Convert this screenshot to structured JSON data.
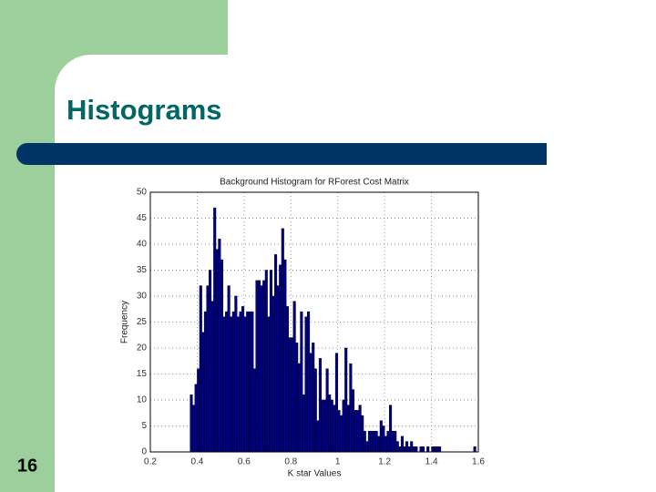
{
  "slide": {
    "title": "Histograms",
    "page_number": "16"
  },
  "chart_data": {
    "type": "histogram",
    "title": "Background Histogram for RForest Cost Matrix",
    "x_label": "K star Values",
    "y_label": "Frequency",
    "color": "#00008f",
    "bins": [
      0.37,
      0.38,
      0.39,
      0.4,
      0.41,
      0.42,
      0.43,
      0.44,
      0.45,
      0.46,
      0.47,
      0.48,
      0.49,
      0.5,
      0.51,
      0.52,
      0.53,
      0.54,
      0.55,
      0.56,
      0.57,
      0.58,
      0.59,
      0.6,
      0.61,
      0.62,
      0.63,
      0.64,
      0.65,
      0.66,
      0.67,
      0.68,
      0.69,
      0.7,
      0.71,
      0.72,
      0.73,
      0.74,
      0.75,
      0.76,
      0.77,
      0.78,
      0.79,
      0.8,
      0.81,
      0.82,
      0.83,
      0.84,
      0.85,
      0.86,
      0.87,
      0.88,
      0.89,
      0.9,
      0.91,
      0.92,
      0.93,
      0.94,
      0.95,
      0.96,
      0.97,
      0.98,
      0.99,
      1.0,
      1.01,
      1.02,
      1.03,
      1.04,
      1.05,
      1.06,
      1.07,
      1.08,
      1.09,
      1.1,
      1.11,
      1.12,
      1.13,
      1.14,
      1.15,
      1.16,
      1.17,
      1.18,
      1.19,
      1.2,
      1.21,
      1.22,
      1.23,
      1.24,
      1.25,
      1.26,
      1.27,
      1.28,
      1.29,
      1.3,
      1.31,
      1.32,
      1.33,
      1.34,
      1.35,
      1.36,
      1.37,
      1.38,
      1.39,
      1.4,
      1.41,
      1.42,
      1.43,
      1.44,
      1.45,
      1.46,
      1.47,
      1.48,
      1.49,
      1.5,
      1.51,
      1.52,
      1.53,
      1.54,
      1.55,
      1.56,
      1.57,
      1.58,
      1.59
    ],
    "values": [
      11,
      9,
      13,
      16,
      32,
      23,
      27,
      32,
      35,
      29,
      47,
      39,
      41,
      37,
      26,
      27,
      32,
      26,
      27,
      30,
      26,
      27,
      28,
      26,
      27,
      27,
      27,
      16,
      33,
      33,
      32,
      33,
      35,
      26,
      35,
      30,
      38,
      32,
      36,
      43,
      37,
      28,
      22,
      22,
      29,
      21,
      17,
      27,
      11,
      26,
      27,
      19,
      21,
      16,
      6,
      18,
      10,
      10,
      16,
      11,
      10,
      9,
      19,
      8,
      7,
      10,
      20,
      9,
      17,
      12,
      8,
      8,
      9,
      7,
      4,
      2,
      4,
      4,
      4,
      4,
      3,
      6,
      5,
      3,
      4,
      9,
      4,
      4,
      2,
      1,
      3,
      1,
      2,
      1,
      2,
      1,
      1,
      0,
      1,
      1,
      0,
      1,
      0,
      1,
      1,
      1,
      1,
      0,
      0,
      0,
      0,
      0,
      0,
      0,
      0,
      0,
      0,
      0,
      0,
      0,
      0,
      1
    ],
    "xlim": [
      0.2,
      1.6
    ],
    "ylim": [
      0,
      50
    ],
    "xticks": [
      0.2,
      0.4,
      0.6,
      0.8,
      1,
      1.2,
      1.4,
      1.6
    ],
    "yticks": [
      0,
      5,
      10,
      15,
      20,
      25,
      30,
      35,
      40,
      45,
      50
    ],
    "grid": true
  }
}
